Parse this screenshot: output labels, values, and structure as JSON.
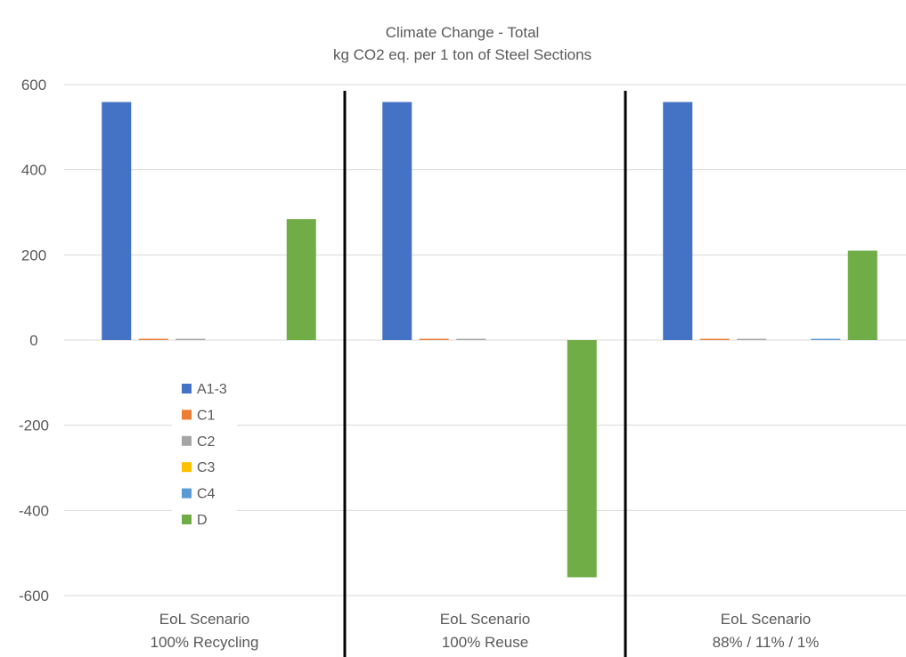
{
  "chart_data": {
    "type": "bar",
    "title": "Climate Change - Total",
    "subtitle": "kg CO2 eq. per 1 ton of Steel Sections",
    "categories": [
      [
        "EoL Scenario",
        "100% Recycling"
      ],
      [
        "EoL Scenario",
        "100% Reuse"
      ],
      [
        "EoL Scenario",
        "88% / 11% / 1%"
      ]
    ],
    "ylim": [
      -600,
      600
    ],
    "yticks": [
      "600",
      "400",
      "200",
      "0",
      "-200",
      "-400",
      "-600"
    ],
    "grid": true,
    "legend_position": "inside-left",
    "series": [
      {
        "name": "A1-3",
        "color": "#4472C4",
        "values": [
          559,
          559,
          559
        ]
      },
      {
        "name": "C1",
        "color": "#ED7D31",
        "values": [
          3,
          3,
          3
        ]
      },
      {
        "name": "C2",
        "color": "#A5A5A5",
        "values": [
          3,
          3,
          3
        ]
      },
      {
        "name": "C3",
        "color": "#FFC000",
        "values": [
          0,
          0,
          0
        ]
      },
      {
        "name": "C4",
        "color": "#5B9BD5",
        "values": [
          0,
          0,
          3
        ]
      },
      {
        "name": "D",
        "color": "#70AD47",
        "values": [
          284,
          -557,
          210
        ]
      }
    ]
  }
}
